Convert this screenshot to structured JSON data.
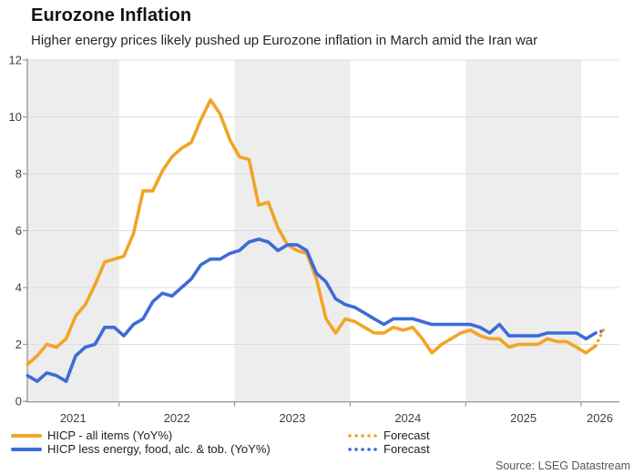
{
  "header": {
    "title": "Eurozone Inflation",
    "subtitle": "Higher energy prices likely pushed up Eurozone inflation in March amid the Iran war"
  },
  "source": {
    "text": "Source: LSEG Datastream"
  },
  "legend": {
    "items": [
      {
        "label": "HICP - all items (YoY%)",
        "swatch": "solid-line",
        "color": "#F2A426"
      },
      {
        "label": "HICP less energy, food, alc. & tob. (YoY%)",
        "swatch": "solid-line",
        "color": "#3D6BD8"
      },
      {
        "label": "Forecast",
        "swatch": "dotted-line",
        "color": "#F2A426"
      },
      {
        "label": "Forecast",
        "swatch": "dotted-line",
        "color": "#3D6BD8"
      }
    ]
  },
  "chart_data": {
    "type": "line",
    "title": "Eurozone Inflation",
    "xlabel": "",
    "ylabel": "",
    "x_unit": "monthly",
    "x_start": "2021-03",
    "x_end": "2026-02",
    "ylim": [
      0,
      12
    ],
    "y_ticks": [
      0,
      2,
      4,
      6,
      8,
      10,
      12
    ],
    "x_tick_labels": [
      "2021",
      "2022",
      "2023",
      "2024",
      "2025",
      "2026"
    ],
    "grid": "horizontal",
    "legend_position": "bottom",
    "shaded_year_bands": [
      2021,
      2023,
      2025
    ],
    "band_color": "#EDEDED",
    "grid_color": "#DDDDDD",
    "axis_color": "#9B9B9B",
    "tick_label_color": "#3F3F3F",
    "series": [
      {
        "name": "HICP - all items (YoY%)",
        "data_name": "hicp-all-items-line",
        "color": "#F2A426",
        "style": "solid",
        "values": [
          1.3,
          1.6,
          2.0,
          1.9,
          2.2,
          3.0,
          3.4,
          4.1,
          4.9,
          5.0,
          5.1,
          5.9,
          7.4,
          7.4,
          8.1,
          8.6,
          8.9,
          9.1,
          9.9,
          10.6,
          10.1,
          9.2,
          8.6,
          8.5,
          6.9,
          7.0,
          6.1,
          5.5,
          5.3,
          5.2,
          4.3,
          2.9,
          2.4,
          2.9,
          2.8,
          2.6,
          2.4,
          2.4,
          2.6,
          2.5,
          2.6,
          2.2,
          1.7,
          2.0,
          2.2,
          2.4,
          2.5,
          2.3,
          2.2,
          2.2,
          1.9,
          2.0,
          2.0,
          2.0,
          2.2,
          2.1,
          2.1,
          1.9,
          1.7,
          1.95
        ]
      },
      {
        "name": "HICP less energy, food, alc. & tob. (YoY%)",
        "data_name": "hicp-core-line",
        "color": "#3D6BD8",
        "style": "solid",
        "values": [
          0.9,
          0.7,
          1.0,
          0.9,
          0.7,
          1.6,
          1.9,
          2.0,
          2.6,
          2.6,
          2.3,
          2.7,
          2.9,
          3.5,
          3.8,
          3.7,
          4.0,
          4.3,
          4.8,
          5.0,
          5.0,
          5.2,
          5.3,
          5.6,
          5.7,
          5.6,
          5.3,
          5.5,
          5.5,
          5.3,
          4.5,
          4.2,
          3.6,
          3.4,
          3.3,
          3.1,
          2.9,
          2.7,
          2.9,
          2.9,
          2.9,
          2.8,
          2.7,
          2.7,
          2.7,
          2.7,
          2.7,
          2.6,
          2.4,
          2.7,
          2.3,
          2.3,
          2.3,
          2.3,
          2.4,
          2.4,
          2.4,
          2.4,
          2.2,
          2.4
        ]
      }
    ],
    "forecast_series": [
      {
        "name": "Forecast",
        "for": "HICP - all items (YoY%)",
        "data_name": "hicp-all-forecast-dotted",
        "color": "#F2A426",
        "style": "dotted",
        "x_start": "2026-02",
        "x_end": "2026-03",
        "x_step_months": 0.5,
        "values": [
          1.95,
          2.3,
          2.65
        ]
      },
      {
        "name": "Forecast",
        "for": "HICP less energy, food, alc. & tob. (YoY%)",
        "data_name": "hicp-core-forecast-dotted",
        "color": "#3D6BD8",
        "style": "dotted",
        "x_start": "2026-02",
        "x_end": "2026-03",
        "x_step_months": 0.5,
        "values": [
          2.4,
          2.45,
          2.5
        ]
      }
    ]
  }
}
